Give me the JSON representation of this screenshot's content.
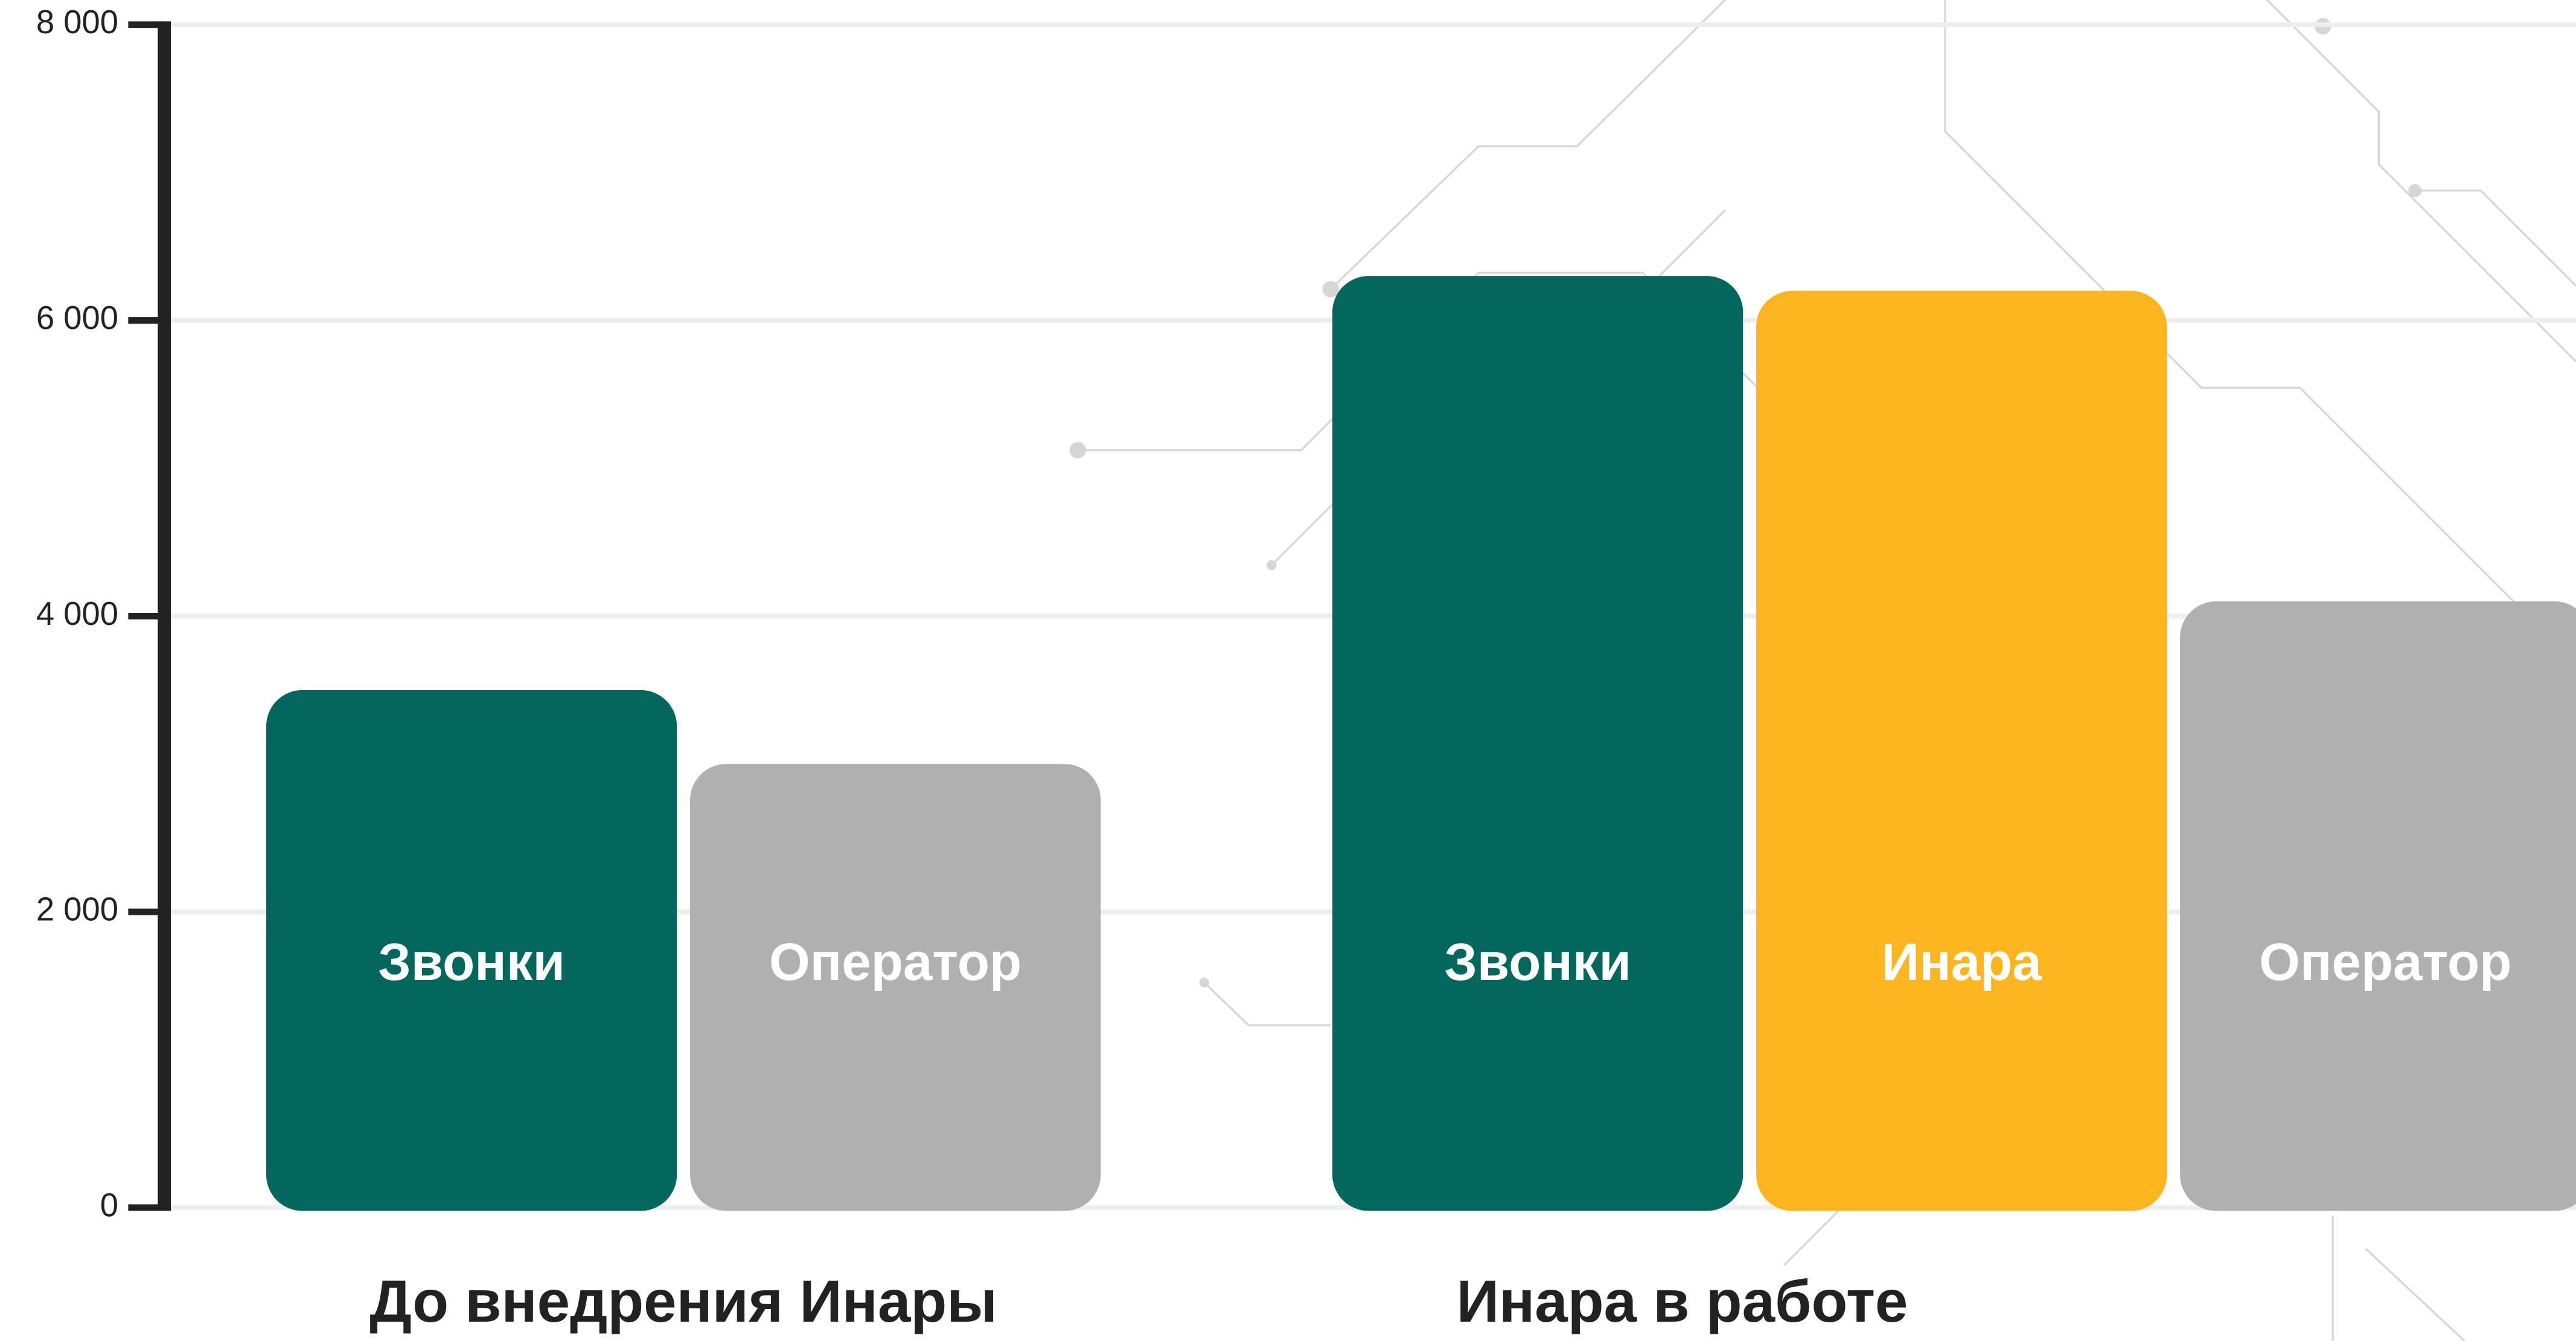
{
  "chart_data": {
    "type": "bar",
    "ylim": [
      0,
      8000
    ],
    "yticks": [
      {
        "value": 0,
        "label": "0"
      },
      {
        "value": 2000,
        "label": "2 000"
      },
      {
        "value": 4000,
        "label": "4 000"
      },
      {
        "value": 6000,
        "label": "6 000"
      },
      {
        "value": 8000,
        "label": "8 000"
      }
    ],
    "grid": true,
    "groups": [
      {
        "name": "До внедрения Инары",
        "bars": [
          {
            "label": "Звонки",
            "value": 3500,
            "color": "#03675e"
          },
          {
            "label": "Оператор",
            "value": 3000,
            "color": "#b0b0b0"
          }
        ]
      },
      {
        "name": "Инара в работе",
        "bars": [
          {
            "label": "Звонки",
            "value": 6300,
            "color": "#03675e"
          },
          {
            "label": "Инара",
            "value": 6200,
            "color": "#fdb51f"
          },
          {
            "label": "Оператор",
            "value": 4100,
            "color": "#b0b0b0"
          }
        ]
      }
    ]
  }
}
